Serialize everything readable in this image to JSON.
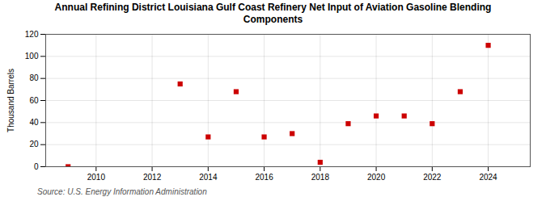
{
  "chart_data": {
    "type": "scatter",
    "title": "Annual Refining District Louisiana Gulf Coast Refinery Net Input of Aviation Gasoline Blending\nComponents",
    "ylabel": "Thousand Barrels",
    "source": "Source: U.S. Energy Information Administration",
    "x": [
      2009,
      2013,
      2014,
      2015,
      2016,
      2017,
      2018,
      2019,
      2020,
      2021,
      2022,
      2023,
      2024
    ],
    "values": [
      0,
      75,
      27,
      68,
      27,
      30,
      4,
      39,
      46,
      46,
      39,
      68,
      110
    ],
    "color": "#cc0000",
    "marker": "square",
    "xlim": [
      2008.2,
      2025.5
    ],
    "ylim": [
      0,
      120
    ],
    "xticks": [
      2010,
      2012,
      2014,
      2016,
      2018,
      2020,
      2022,
      2024
    ],
    "yticks": [
      0,
      20,
      40,
      60,
      80,
      100,
      120
    ],
    "grid": true
  }
}
